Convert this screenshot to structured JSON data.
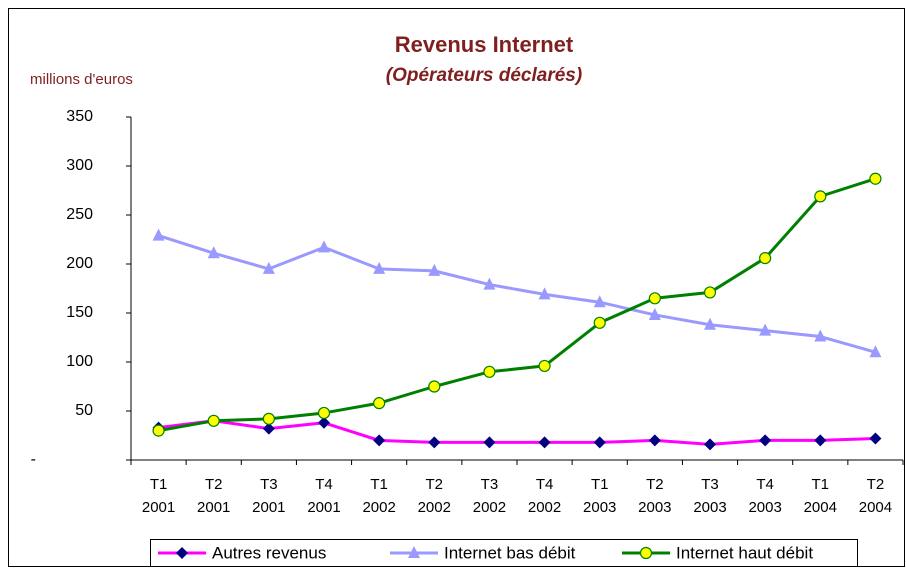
{
  "chart_data": {
    "type": "line",
    "title": "Revenus Internet",
    "subtitle": "(Opérateurs déclarés)",
    "y_axis_label": "millions d'euros",
    "categories": [
      [
        "T1",
        "2001"
      ],
      [
        "T2",
        "2001"
      ],
      [
        "T3",
        "2001"
      ],
      [
        "T4",
        "2001"
      ],
      [
        "T1",
        "2002"
      ],
      [
        "T2",
        "2002"
      ],
      [
        "T3",
        "2002"
      ],
      [
        "T4",
        "2002"
      ],
      [
        "T1",
        "2003"
      ],
      [
        "T2",
        "2003"
      ],
      [
        "T3",
        "2003"
      ],
      [
        "T4",
        "2003"
      ],
      [
        "T1",
        "2004"
      ],
      [
        "T2",
        "2004"
      ]
    ],
    "series": [
      {
        "name": "Autres revenus",
        "color": "#ff00ff",
        "marker": "diamond",
        "marker_color": "#000080",
        "values": [
          33,
          40,
          32,
          38,
          20,
          18,
          18,
          18,
          18,
          20,
          16,
          20,
          20,
          22
        ]
      },
      {
        "name": "Internet bas débit",
        "color": "#9999ff",
        "marker": "triangle",
        "marker_color": "#9999ff",
        "values": [
          229,
          211,
          195,
          217,
          195,
          193,
          179,
          169,
          161,
          148,
          138,
          132,
          126,
          110
        ]
      },
      {
        "name": "Internet haut débit",
        "color": "#008000",
        "marker": "circle",
        "marker_color": "#ffff00",
        "values": [
          30,
          40,
          42,
          48,
          58,
          75,
          90,
          96,
          140,
          165,
          171,
          206,
          269,
          287
        ]
      }
    ],
    "ylim": [
      0,
      350
    ],
    "yticks": [
      {
        "value": 0,
        "label": "-"
      },
      50,
      100,
      150,
      200,
      250,
      300,
      350
    ],
    "grid": false,
    "legend": "bottom"
  }
}
